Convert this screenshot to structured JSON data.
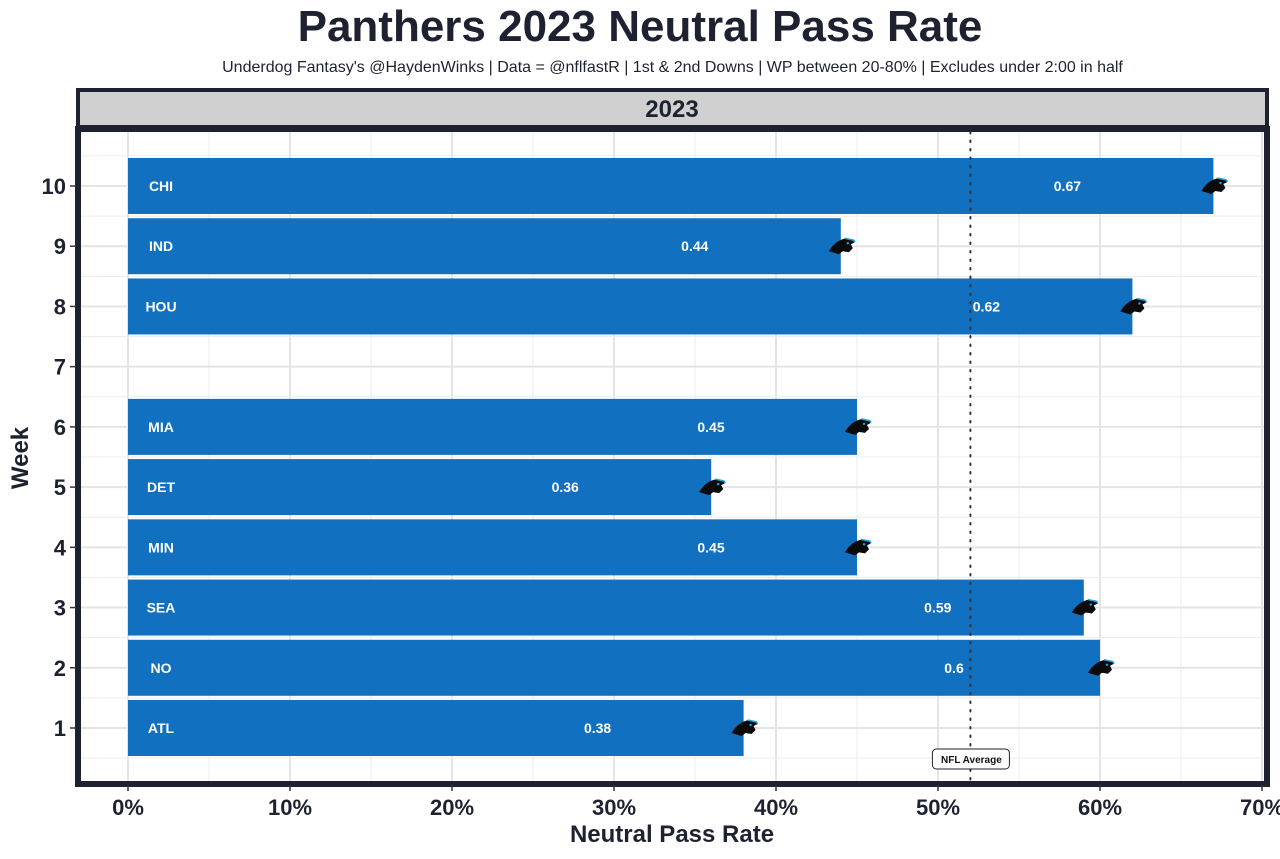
{
  "chart_data": {
    "type": "bar",
    "orientation": "horizontal",
    "title": "Panthers 2023 Neutral Pass Rate",
    "subtitle": "Underdog Fantasy's @HaydenWinks | Data = @nflfastR | 1st & 2nd Downs | WP between 20-80% | Excludes under 2:00 in half",
    "facet_label": "2023",
    "xlabel": "Neutral Pass Rate",
    "ylabel": "Week",
    "xlim": [
      0,
      0.7
    ],
    "x_ticks": [
      0,
      0.1,
      0.2,
      0.3,
      0.4,
      0.5,
      0.6,
      0.7
    ],
    "x_tick_labels": [
      "0%",
      "10%",
      "20%",
      "30%",
      "40%",
      "50%",
      "60%",
      "70%"
    ],
    "y_ticks": [
      1,
      2,
      3,
      4,
      5,
      6,
      7,
      8,
      9,
      10
    ],
    "y_tick_labels": [
      "1",
      "2",
      "3",
      "4",
      "5",
      "6",
      "7",
      "8",
      "9",
      "10"
    ],
    "grid": true,
    "bar_color": "#1170bf",
    "bars": [
      {
        "week": 10,
        "opponent": "CHI",
        "value": 0.67,
        "label": "0.67"
      },
      {
        "week": 9,
        "opponent": "IND",
        "value": 0.44,
        "label": "0.44"
      },
      {
        "week": 8,
        "opponent": "HOU",
        "value": 0.62,
        "label": "0.62"
      },
      {
        "week": 6,
        "opponent": "MIA",
        "value": 0.45,
        "label": "0.45"
      },
      {
        "week": 5,
        "opponent": "DET",
        "value": 0.36,
        "label": "0.36"
      },
      {
        "week": 4,
        "opponent": "MIN",
        "value": 0.45,
        "label": "0.45"
      },
      {
        "week": 3,
        "opponent": "SEA",
        "value": 0.59,
        "label": "0.59"
      },
      {
        "week": 2,
        "opponent": "NO",
        "value": 0.6,
        "label": "0.6"
      },
      {
        "week": 1,
        "opponent": "ATL",
        "value": 0.38,
        "label": "0.38"
      }
    ],
    "reference_line": {
      "value": 0.52,
      "style": "dotted",
      "label": "NFL Average"
    },
    "marker_icon": "panthers-logo-icon"
  }
}
